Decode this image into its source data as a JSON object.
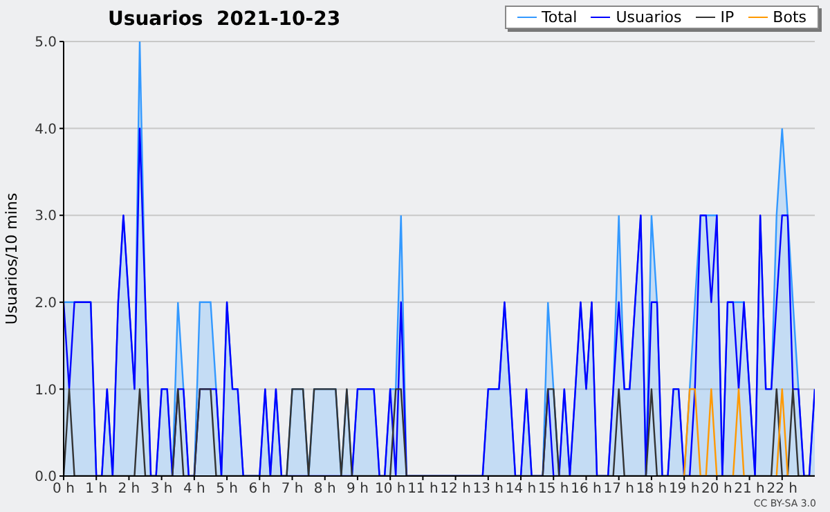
{
  "chart_data": {
    "type": "line",
    "title": "Usuarios  2021-10-23",
    "ylabel": "Usuarios/10 mins",
    "annotations": [
      "CC BY-SA 3.0"
    ],
    "x": [
      0,
      0.17,
      0.33,
      0.5,
      0.67,
      0.83,
      1,
      1.17,
      1.33,
      1.5,
      1.67,
      1.83,
      2,
      2.17,
      2.33,
      2.5,
      2.67,
      2.83,
      3,
      3.17,
      3.33,
      3.5,
      3.67,
      3.83,
      4,
      4.17,
      4.33,
      4.5,
      4.67,
      4.83,
      5,
      5.17,
      5.33,
      5.5,
      5.67,
      5.83,
      6,
      6.17,
      6.33,
      6.5,
      6.67,
      6.83,
      7,
      7.17,
      7.33,
      7.5,
      7.67,
      7.83,
      8,
      8.17,
      8.33,
      8.5,
      8.67,
      8.83,
      9,
      9.17,
      9.33,
      9.5,
      9.67,
      9.83,
      10,
      10.17,
      10.33,
      10.5,
      10.67,
      10.83,
      11,
      11.17,
      11.33,
      11.5,
      11.67,
      11.83,
      12,
      12.17,
      12.33,
      12.5,
      12.67,
      12.83,
      13,
      13.17,
      13.33,
      13.5,
      13.67,
      13.83,
      14,
      14.17,
      14.33,
      14.5,
      14.67,
      14.83,
      15,
      15.17,
      15.33,
      15.5,
      15.67,
      15.83,
      16,
      16.17,
      16.33,
      16.5,
      16.67,
      16.83,
      17,
      17.17,
      17.33,
      17.5,
      17.67,
      17.83,
      18,
      18.17,
      18.33,
      18.5,
      18.67,
      18.83,
      19,
      19.17,
      19.33,
      19.5,
      19.67,
      19.83,
      20,
      20.17,
      20.33,
      20.5,
      20.67,
      20.83,
      21,
      21.17,
      21.33,
      21.5,
      21.67,
      21.83,
      22,
      22.17,
      22.33,
      22.5,
      22.67,
      22.83,
      23
    ],
    "series": [
      {
        "name": "Total",
        "type": "area",
        "color": "#3399ff",
        "values": [
          2,
          2,
          2,
          2,
          2,
          2,
          0,
          0,
          1,
          0,
          2,
          3,
          2,
          1,
          5,
          2,
          0,
          0,
          1,
          1,
          0,
          2,
          1,
          0,
          0,
          2,
          2,
          2,
          1,
          0,
          2,
          1,
          1,
          0,
          0,
          0,
          0,
          1,
          0,
          1,
          0,
          0,
          1,
          1,
          1,
          0,
          1,
          1,
          1,
          1,
          1,
          0,
          1,
          0,
          1,
          1,
          1,
          1,
          0,
          0,
          1,
          1,
          3,
          0,
          0,
          0,
          0,
          0,
          0,
          0,
          0,
          0,
          0,
          0,
          0,
          0,
          0,
          0,
          1,
          1,
          1,
          2,
          1,
          0,
          0,
          1,
          0,
          0,
          0,
          2,
          1,
          0,
          1,
          0,
          1,
          2,
          1,
          2,
          0,
          0,
          0,
          1,
          3,
          1,
          1,
          2,
          3,
          0,
          3,
          2,
          0,
          0,
          1,
          1,
          0,
          1,
          2,
          3,
          3,
          3,
          3,
          0,
          2,
          2,
          2,
          2,
          1,
          0,
          3,
          1,
          1,
          3,
          4,
          3,
          2,
          1,
          0,
          0,
          1
        ]
      },
      {
        "name": "Usuarios",
        "color": "#0000ff",
        "values": [
          2,
          1,
          2,
          2,
          2,
          2,
          0,
          0,
          1,
          0,
          2,
          3,
          2,
          1,
          4,
          2,
          0,
          0,
          1,
          1,
          0,
          1,
          1,
          0,
          0,
          1,
          1,
          1,
          1,
          0,
          2,
          1,
          1,
          0,
          0,
          0,
          0,
          1,
          0,
          1,
          0,
          0,
          0,
          0,
          0,
          0,
          0,
          0,
          0,
          0,
          0,
          0,
          0,
          0,
          1,
          1,
          1,
          1,
          0,
          0,
          1,
          0,
          2,
          0,
          0,
          0,
          0,
          0,
          0,
          0,
          0,
          0,
          0,
          0,
          0,
          0,
          0,
          0,
          1,
          1,
          1,
          2,
          1,
          0,
          0,
          1,
          0,
          0,
          0,
          1,
          0,
          0,
          1,
          0,
          1,
          2,
          1,
          2,
          0,
          0,
          0,
          1,
          2,
          1,
          1,
          2,
          3,
          0,
          2,
          2,
          0,
          0,
          1,
          1,
          0,
          0,
          1,
          3,
          3,
          2,
          3,
          0,
          2,
          2,
          1,
          2,
          1,
          0,
          3,
          1,
          1,
          2,
          3,
          3,
          1,
          1,
          0,
          0,
          1
        ]
      },
      {
        "name": "IP",
        "color": "#333333",
        "values": [
          0,
          1,
          0,
          0,
          0,
          0,
          0,
          0,
          0,
          0,
          0,
          0,
          0,
          0,
          1,
          0,
          0,
          0,
          0,
          0,
          0,
          1,
          0,
          0,
          0,
          1,
          1,
          1,
          0,
          0,
          0,
          0,
          0,
          0,
          0,
          0,
          0,
          0,
          0,
          0,
          0,
          0,
          1,
          1,
          1,
          0,
          1,
          1,
          1,
          1,
          1,
          0,
          1,
          0,
          0,
          0,
          0,
          0,
          0,
          0,
          0,
          1,
          1,
          0,
          0,
          0,
          0,
          0,
          0,
          0,
          0,
          0,
          0,
          0,
          0,
          0,
          0,
          0,
          0,
          0,
          0,
          0,
          0,
          0,
          0,
          0,
          0,
          0,
          0,
          1,
          1,
          0,
          0,
          0,
          0,
          0,
          0,
          0,
          0,
          0,
          0,
          0,
          1,
          0,
          0,
          0,
          0,
          0,
          1,
          0,
          0,
          0,
          0,
          0,
          0,
          0,
          0,
          0,
          0,
          0,
          0,
          0,
          0,
          0,
          0,
          0,
          0,
          0,
          0,
          0,
          0,
          1,
          0,
          0,
          1,
          0,
          0,
          0,
          0
        ]
      },
      {
        "name": "Bots",
        "color": "#ff9900",
        "values": [
          null,
          null,
          null,
          null,
          null,
          null,
          null,
          null,
          null,
          null,
          null,
          null,
          null,
          null,
          null,
          null,
          null,
          null,
          null,
          null,
          null,
          null,
          null,
          null,
          null,
          null,
          null,
          null,
          null,
          null,
          null,
          null,
          null,
          null,
          null,
          null,
          null,
          null,
          null,
          null,
          null,
          null,
          null,
          null,
          null,
          null,
          null,
          null,
          null,
          null,
          null,
          null,
          null,
          null,
          null,
          null,
          null,
          null,
          null,
          null,
          null,
          null,
          null,
          null,
          null,
          null,
          null,
          null,
          null,
          null,
          null,
          null,
          null,
          null,
          null,
          null,
          null,
          null,
          null,
          null,
          null,
          null,
          null,
          null,
          null,
          null,
          null,
          null,
          null,
          null,
          null,
          null,
          null,
          null,
          null,
          null,
          null,
          null,
          null,
          null,
          null,
          null,
          null,
          null,
          null,
          null,
          null,
          null,
          null,
          null,
          null,
          null,
          null,
          null,
          0,
          1,
          1,
          0,
          0,
          1,
          0,
          null,
          null,
          0,
          1,
          0,
          null,
          null,
          null,
          null,
          null,
          0,
          1,
          0,
          null,
          null,
          null,
          null,
          null
        ]
      }
    ],
    "xlim": [
      0,
      23
    ],
    "xticks": [
      {
        "value": 0,
        "label": "0 h"
      },
      {
        "value": 1,
        "label": "1 h"
      },
      {
        "value": 2,
        "label": "2 h"
      },
      {
        "value": 3,
        "label": "3 h"
      },
      {
        "value": 4,
        "label": "4 h"
      },
      {
        "value": 5,
        "label": "5 h"
      },
      {
        "value": 6,
        "label": "6 h"
      },
      {
        "value": 7,
        "label": "7 h"
      },
      {
        "value": 8,
        "label": "8 h"
      },
      {
        "value": 9,
        "label": "9 h"
      },
      {
        "value": 10,
        "label": "10 h"
      },
      {
        "value": 11,
        "label": "11 h"
      },
      {
        "value": 12,
        "label": "12 h"
      },
      {
        "value": 13,
        "label": "13 h"
      },
      {
        "value": 14,
        "label": "14 h"
      },
      {
        "value": 15,
        "label": "15 h"
      },
      {
        "value": 16,
        "label": "16 h"
      },
      {
        "value": 17,
        "label": "17 h"
      },
      {
        "value": 18,
        "label": "18 h"
      },
      {
        "value": 19,
        "label": "19 h"
      },
      {
        "value": 20,
        "label": "20 h"
      },
      {
        "value": 21,
        "label": "21 h"
      },
      {
        "value": 22,
        "label": "22 h"
      }
    ],
    "ylim": [
      0,
      5
    ],
    "yticks": [
      {
        "value": 0,
        "label": "0.0"
      },
      {
        "value": 1,
        "label": "1.0"
      },
      {
        "value": 2,
        "label": "2.0"
      },
      {
        "value": 3,
        "label": "3.0"
      },
      {
        "value": 4,
        "label": "4.0"
      },
      {
        "value": 5,
        "label": "5.0"
      }
    ],
    "grid": "y",
    "legend": "top right"
  }
}
